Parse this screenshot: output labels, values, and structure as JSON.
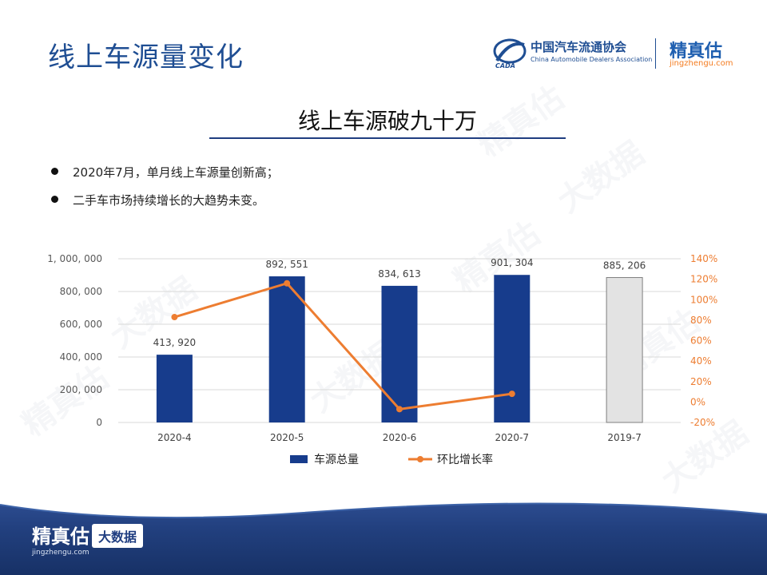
{
  "page": {
    "title": "线上车源量变化",
    "subtitle": "线上车源破九十万",
    "bullets": [
      "2020年7月，单月线上车源量创新高；",
      "二手车市场持续增长的大趋势未变。"
    ]
  },
  "logos": {
    "caada_cn": "中国汽车流通协会",
    "caada_en": "China Automobile Dealers Association",
    "jzg_cn": "精真估",
    "jzg_url": "jingzhengu.com"
  },
  "footer": {
    "brand": "精真估",
    "url": "jingzhengu.com",
    "badge": "大数据"
  },
  "colors": {
    "bar": "#173c8c",
    "bar_prior": "#e3e3e3",
    "line": "#ed7d31",
    "title": "#1f4e93"
  },
  "chart_data": {
    "type": "bar",
    "categories": [
      "2020-4",
      "2020-5",
      "2020-6",
      "2020-7",
      "2019-7"
    ],
    "series": [
      {
        "name": "车源总量",
        "type": "bar",
        "axis": "left",
        "values": [
          413920,
          892551,
          834613,
          901304,
          885206
        ],
        "labels": [
          "413, 920",
          "892, 551",
          "834, 613",
          "901, 304",
          "885, 206"
        ]
      },
      {
        "name": "环比增长率",
        "type": "line",
        "axis": "right",
        "values": [
          83,
          116,
          -7,
          8,
          null
        ]
      }
    ],
    "y_left": {
      "min": 0,
      "max": 1000000,
      "ticks": [
        "0",
        "200, 000",
        "400, 000",
        "600, 000",
        "800, 000",
        "1, 000, 000"
      ]
    },
    "y_right": {
      "min": -20,
      "max": 140,
      "ticks": [
        "-20%",
        "0%",
        "20%",
        "40%",
        "60%",
        "80%",
        "100%",
        "120%",
        "140%"
      ]
    },
    "grid": true,
    "legend_position": "bottom"
  }
}
